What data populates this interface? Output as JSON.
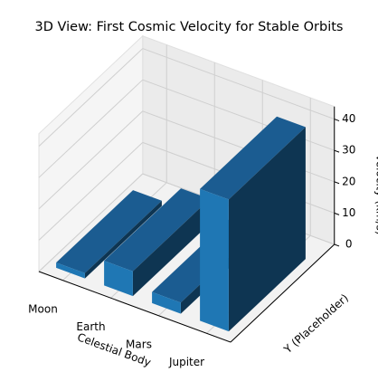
{
  "chart_data": {
    "type": "bar3d",
    "title": "3D View: First Cosmic Velocity for Stable Orbits",
    "categories": [
      "Moon",
      "Earth",
      "Mars",
      "Jupiter"
    ],
    "values": [
      1.68,
      7.9,
      3.55,
      42.1
    ],
    "color": "#1f77b4",
    "xlabel": "Celestial Body",
    "ylabel": "Y (Placeholder)",
    "zlabel": "Velocity (km/s)",
    "zlim": [
      0,
      44
    ],
    "zticks": [
      0,
      10,
      20,
      30,
      40
    ],
    "grid": true
  }
}
